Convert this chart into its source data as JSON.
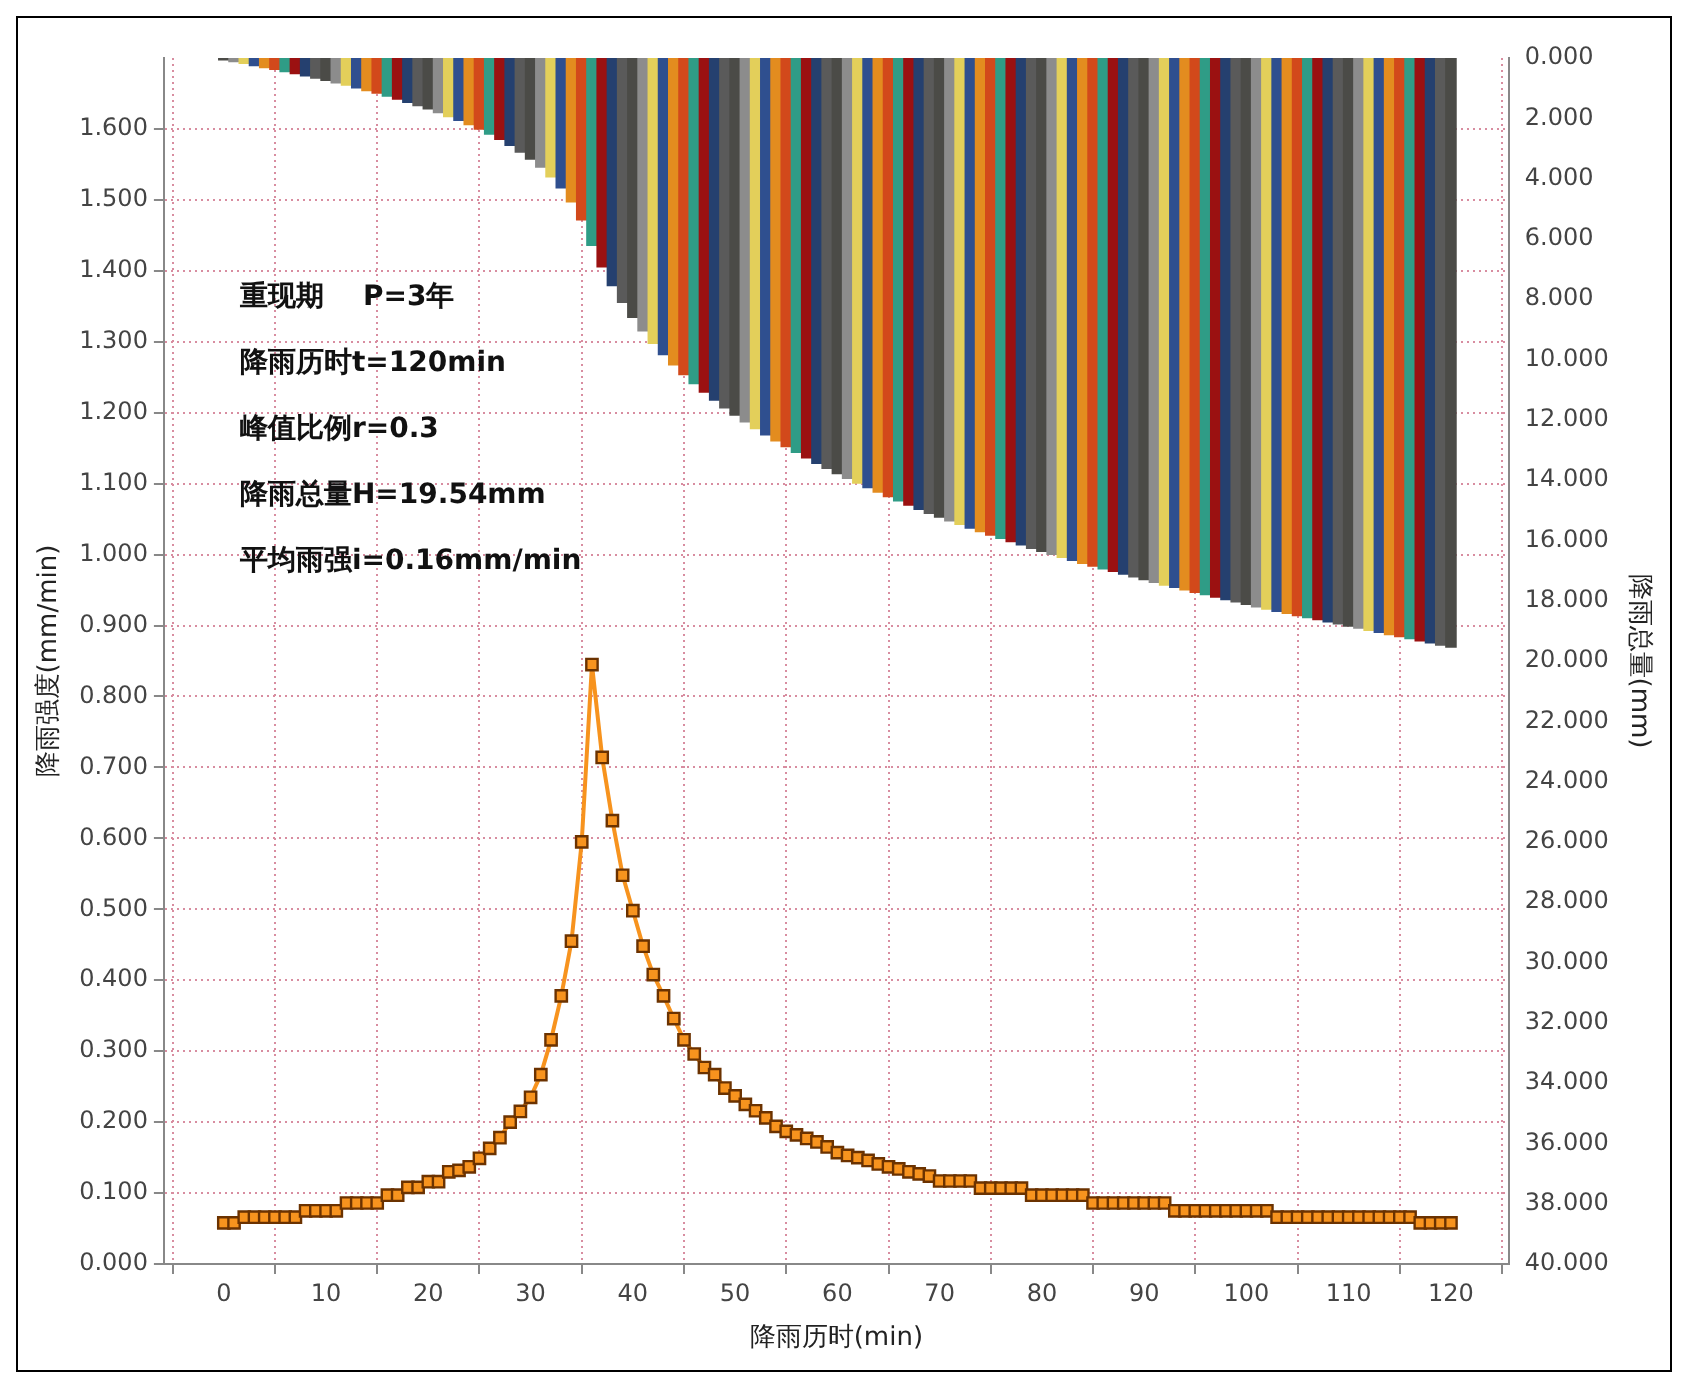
{
  "chart_data": {
    "type": "line",
    "xlabel": "降雨历时(min)",
    "ylabel": "降雨强度(mm/min)",
    "y2label": "降雨总量(mm)",
    "annotations": [
      "重现期    P=3年",
      "降雨历时t=120min",
      "峰值比例r=0.3",
      "降雨总量H=19.54mm",
      "平均雨强i=0.16mm/min"
    ],
    "x": [
      0,
      1,
      2,
      3,
      4,
      5,
      6,
      7,
      8,
      9,
      10,
      11,
      12,
      13,
      14,
      15,
      16,
      17,
      18,
      19,
      20,
      21,
      22,
      23,
      24,
      25,
      26,
      27,
      28,
      29,
      30,
      31,
      32,
      33,
      34,
      35,
      36,
      37,
      38,
      39,
      40,
      41,
      42,
      43,
      44,
      45,
      46,
      47,
      48,
      49,
      50,
      51,
      52,
      53,
      54,
      55,
      56,
      57,
      58,
      59,
      60,
      61,
      62,
      63,
      64,
      65,
      66,
      67,
      68,
      69,
      70,
      71,
      72,
      73,
      74,
      75,
      76,
      77,
      78,
      79,
      80,
      81,
      82,
      83,
      84,
      85,
      86,
      87,
      88,
      89,
      90,
      91,
      92,
      93,
      94,
      95,
      96,
      97,
      98,
      99,
      100,
      101,
      102,
      103,
      104,
      105,
      106,
      107,
      108,
      109,
      110,
      111,
      112,
      113,
      114,
      115,
      116,
      117,
      118,
      119,
      120
    ],
    "series": [
      {
        "type": "bar",
        "axis": "y2",
        "colors": [
          "#4b4b47",
          "#8c8c8c",
          "#e3cf5a",
          "#2f4f8f",
          "#e38c1f",
          "#d2491b",
          "#2f9c86",
          "#9b1111",
          "#25406f",
          "#5a5a5a",
          "#4b4b47",
          "#8c8c8c",
          "#e3cf5a",
          "#2f4f8f",
          "#e38c1f",
          "#d2491b",
          "#2f9c86",
          "#9b1111",
          "#25406f",
          "#5a5a5a",
          "#4b4b47",
          "#8c8c8c",
          "#e3cf5a",
          "#2f4f8f",
          "#e38c1f",
          "#d2491b",
          "#2f9c86",
          "#9b1111",
          "#25406f",
          "#5a5a5a",
          "#4b4b47",
          "#8c8c8c",
          "#e3cf5a",
          "#2f4f8f",
          "#e38c1f",
          "#d2491b",
          "#2f9c86",
          "#9b1111",
          "#25406f",
          "#5a5a5a",
          "#4b4b47",
          "#8c8c8c",
          "#e3cf5a",
          "#2f4f8f",
          "#e38c1f",
          "#d2491b",
          "#2f9c86",
          "#9b1111",
          "#25406f",
          "#5a5a5a",
          "#4b4b47",
          "#8c8c8c",
          "#e3cf5a",
          "#2f4f8f",
          "#e38c1f",
          "#d2491b",
          "#2f9c86",
          "#9b1111",
          "#25406f",
          "#5a5a5a",
          "#4b4b47",
          "#8c8c8c",
          "#e3cf5a",
          "#2f4f8f",
          "#e38c1f",
          "#d2491b",
          "#2f9c86",
          "#9b1111",
          "#25406f",
          "#5a5a5a",
          "#4b4b47",
          "#8c8c8c",
          "#e3cf5a",
          "#2f4f8f",
          "#e38c1f",
          "#d2491b",
          "#2f9c86",
          "#9b1111",
          "#25406f",
          "#5a5a5a",
          "#4b4b47",
          "#8c8c8c",
          "#e3cf5a",
          "#2f4f8f",
          "#e38c1f",
          "#d2491b",
          "#2f9c86",
          "#9b1111",
          "#25406f",
          "#5a5a5a",
          "#4b4b47",
          "#8c8c8c",
          "#e3cf5a",
          "#2f4f8f",
          "#e38c1f",
          "#d2491b",
          "#2f9c86",
          "#9b1111",
          "#25406f",
          "#5a5a5a",
          "#4b4b47",
          "#8c8c8c",
          "#e3cf5a",
          "#2f4f8f",
          "#e38c1f",
          "#d2491b",
          "#2f9c86",
          "#9b1111",
          "#25406f",
          "#5a5a5a",
          "#4b4b47",
          "#8c8c8c",
          "#e3cf5a",
          "#2f4f8f",
          "#e38c1f",
          "#d2491b",
          "#2f9c86",
          "#9b1111",
          "#25406f",
          "#5a5a5a",
          "#4b4b47"
        ],
        "values": [
          0.06,
          0.12,
          0.18,
          0.25,
          0.32,
          0.38,
          0.45,
          0.52,
          0.59,
          0.67,
          0.74,
          0.82,
          0.9,
          0.99,
          1.08,
          1.16,
          1.26,
          1.36,
          1.47,
          1.58,
          1.69,
          1.81,
          1.94,
          2.07,
          2.21,
          2.36,
          2.52,
          2.7,
          2.9,
          3.12,
          3.35,
          3.62,
          3.94,
          4.31,
          4.77,
          5.37,
          6.21,
          6.93,
          7.55,
          8.1,
          8.6,
          9.05,
          9.46,
          9.84,
          10.18,
          10.5,
          10.8,
          11.08,
          11.35,
          11.6,
          11.84,
          12.07,
          12.29,
          12.5,
          12.7,
          12.89,
          13.08,
          13.26,
          13.44,
          13.61,
          13.78,
          13.94,
          14.1,
          14.25,
          14.4,
          14.55,
          14.69,
          14.83,
          14.97,
          15.1,
          15.23,
          15.35,
          15.47,
          15.59,
          15.71,
          15.82,
          15.93,
          16.04,
          16.15,
          16.26,
          16.36,
          16.46,
          16.56,
          16.66,
          16.76,
          16.85,
          16.94,
          17.03,
          17.12,
          17.21,
          17.3,
          17.39,
          17.48,
          17.56,
          17.64,
          17.72,
          17.8,
          17.88,
          17.96,
          18.04,
          18.12,
          18.2,
          18.28,
          18.35,
          18.42,
          18.49,
          18.56,
          18.63,
          18.7,
          18.77,
          18.84,
          18.91,
          18.98,
          19.05,
          19.12,
          19.19,
          19.26,
          19.33,
          19.4,
          19.47,
          19.54
        ]
      },
      {
        "color": "#f7931e",
        "values": [
          0.058,
          0.058,
          0.066,
          0.066,
          0.066,
          0.066,
          0.066,
          0.066,
          0.075,
          0.075,
          0.075,
          0.075,
          0.086,
          0.086,
          0.086,
          0.086,
          0.097,
          0.097,
          0.108,
          0.108,
          0.116,
          0.116,
          0.13,
          0.132,
          0.137,
          0.149,
          0.163,
          0.178,
          0.2,
          0.215,
          0.235,
          0.267,
          0.316,
          0.378,
          0.455,
          0.595,
          0.845,
          0.714,
          0.625,
          0.548,
          0.498,
          0.448,
          0.408,
          0.378,
          0.346,
          0.316,
          0.296,
          0.277,
          0.267,
          0.248,
          0.237,
          0.225,
          0.216,
          0.206,
          0.194,
          0.187,
          0.182,
          0.177,
          0.172,
          0.165,
          0.157,
          0.153,
          0.15,
          0.146,
          0.141,
          0.137,
          0.134,
          0.13,
          0.127,
          0.124,
          0.117,
          0.117,
          0.117,
          0.117,
          0.107,
          0.107,
          0.107,
          0.107,
          0.107,
          0.097,
          0.097,
          0.097,
          0.097,
          0.097,
          0.097,
          0.086,
          0.086,
          0.086,
          0.086,
          0.086,
          0.086,
          0.086,
          0.086,
          0.075,
          0.075,
          0.075,
          0.075,
          0.075,
          0.075,
          0.075,
          0.075,
          0.075,
          0.075,
          0.066,
          0.066,
          0.066,
          0.066,
          0.066,
          0.066,
          0.066,
          0.066,
          0.066,
          0.066,
          0.066,
          0.066,
          0.066,
          0.066,
          0.058,
          0.058,
          0.058,
          0.058
        ]
      }
    ],
    "xlim": [
      -0.8,
      120.6
    ],
    "xticks": [
      0,
      10,
      20,
      30,
      40,
      50,
      60,
      70,
      80,
      90,
      100,
      110,
      120
    ],
    "ylim": [
      0,
      1.7
    ],
    "yticks": [
      {
        "value": 0,
        "label": "0.000"
      },
      {
        "value": 0.1,
        "label": "0.100"
      },
      {
        "value": 0.2,
        "label": "0.200"
      },
      {
        "value": 0.3,
        "label": "0.300"
      },
      {
        "value": 0.4,
        "label": "0.400"
      },
      {
        "value": 0.5,
        "label": "0.500"
      },
      {
        "value": 0.6,
        "label": "0.600"
      },
      {
        "value": 0.7,
        "label": "0.700"
      },
      {
        "value": 0.8,
        "label": "0.800"
      },
      {
        "value": 0.9,
        "label": "0.900"
      },
      {
        "value": 1,
        "label": "1.000"
      },
      {
        "value": 1.1,
        "label": "1.100"
      },
      {
        "value": 1.2,
        "label": "1.200"
      },
      {
        "value": 1.3,
        "label": "1.300"
      },
      {
        "value": 1.4,
        "label": "1.400"
      },
      {
        "value": 1.5,
        "label": "1.500"
      },
      {
        "value": 1.6,
        "label": "1.600"
      }
    ],
    "y2lim": [
      40,
      0
    ],
    "y2ticks": [
      {
        "value": 0,
        "label": "0.000"
      },
      {
        "value": 2,
        "label": "2.000"
      },
      {
        "value": 4,
        "label": "4.000"
      },
      {
        "value": 6,
        "label": "6.000"
      },
      {
        "value": 8,
        "label": "8.000"
      },
      {
        "value": 10,
        "label": "10.000"
      },
      {
        "value": 12,
        "label": "12.000"
      },
      {
        "value": 14,
        "label": "14.000"
      },
      {
        "value": 16,
        "label": "16.000"
      },
      {
        "value": 18,
        "label": "18.000"
      },
      {
        "value": 20,
        "label": "20.000"
      },
      {
        "value": 22,
        "label": "22.000"
      },
      {
        "value": 24,
        "label": "24.000"
      },
      {
        "value": 26,
        "label": "26.000"
      },
      {
        "value": 28,
        "label": "28.000"
      },
      {
        "value": 30,
        "label": "30.000"
      },
      {
        "value": 32,
        "label": "32.000"
      },
      {
        "value": 34,
        "label": "34.000"
      },
      {
        "value": 36,
        "label": "36.000"
      },
      {
        "value": 38,
        "label": "38.000"
      },
      {
        "value": 40,
        "label": "40.000"
      }
    ],
    "grid": true,
    "marker": "square",
    "line_style": "solid",
    "legend": false
  }
}
